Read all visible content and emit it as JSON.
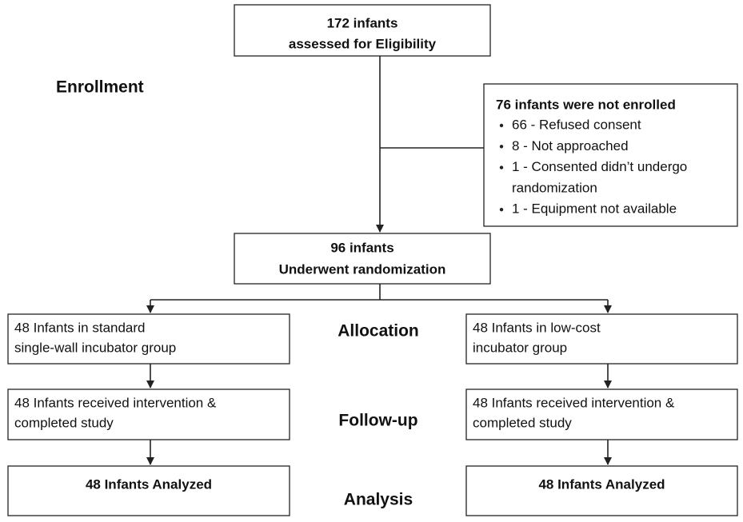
{
  "stages": [
    "Enrollment",
    "Allocation",
    "Follow-up",
    "Analysis"
  ],
  "eligibility": {
    "lines": [
      "172 infants",
      "assessed for Eligibility"
    ]
  },
  "excluded": {
    "title": "76 infants were not enrolled",
    "items": [
      [
        "66 - Refused consent"
      ],
      [
        "8 - Not approached"
      ],
      [
        "1 - Consented didn’t undergo",
        "randomization"
      ],
      [
        "1 - Equipment not available"
      ]
    ]
  },
  "randomized": {
    "lines": [
      "96 infants",
      "Underwent randomization"
    ]
  },
  "arms": [
    {
      "allocation": [
        "48 Infants in standard",
        "single-wall incubator group"
      ],
      "followup": [
        "48 Infants received intervention &",
        "completed study"
      ],
      "analysis": "48 Infants Analyzed"
    },
    {
      "allocation": [
        "48 Infants in low-cost",
        "incubator group"
      ],
      "followup": [
        "48 Infants received intervention &",
        "completed study"
      ],
      "analysis": "48 Infants Analyzed"
    }
  ]
}
